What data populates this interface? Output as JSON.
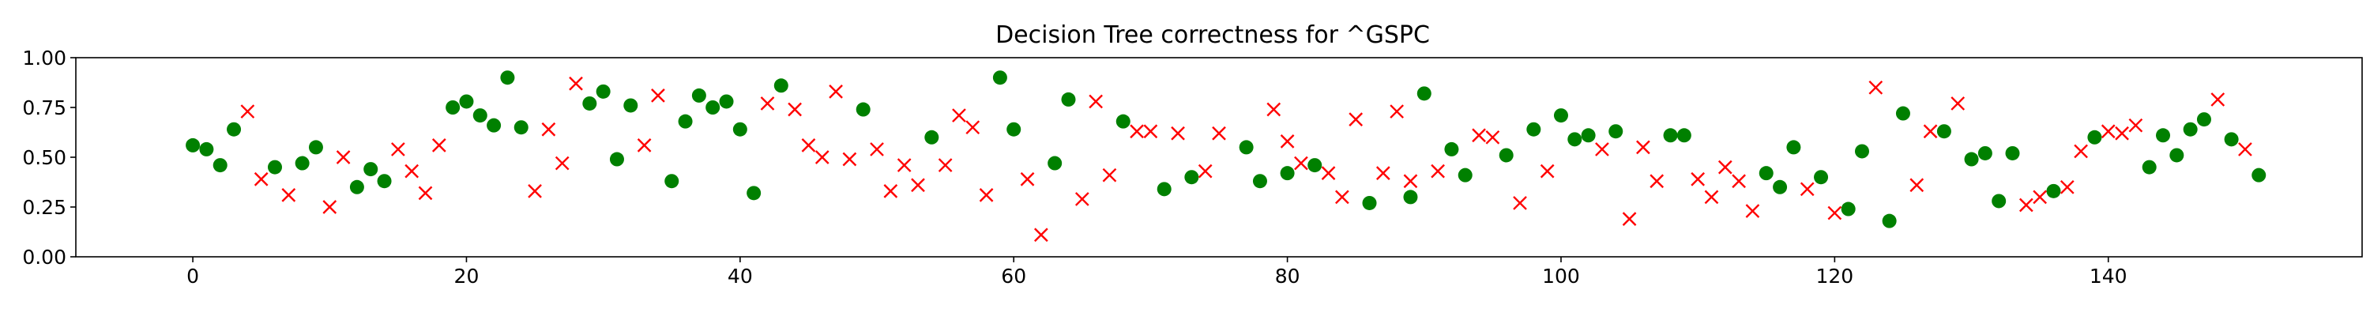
{
  "chart_data": {
    "type": "scatter",
    "title": "Decision Tree correctness for ^GSPC",
    "xlabel": "",
    "ylabel": "",
    "xlim": [
      -8.55,
      158.55
    ],
    "ylim": [
      0.0,
      1.0
    ],
    "xticks": [
      0,
      20,
      40,
      60,
      80,
      100,
      120,
      140
    ],
    "yticks": [
      0.0,
      0.25,
      0.5,
      0.75,
      1.0
    ],
    "xtick_labels": [
      "0",
      "20",
      "40",
      "60",
      "80",
      "100",
      "120",
      "140"
    ],
    "ytick_labels": [
      "0.00",
      "0.25",
      "0.50",
      "0.75",
      "1.00"
    ],
    "grid": false,
    "legend": "none",
    "series": [
      {
        "marker": "circle",
        "color": "#008000",
        "points": [
          [
            0,
            0.56
          ],
          [
            1,
            0.54
          ],
          [
            2,
            0.46
          ],
          [
            3,
            0.64
          ],
          [
            6,
            0.45
          ],
          [
            8,
            0.47
          ],
          [
            9,
            0.55
          ],
          [
            12,
            0.35
          ],
          [
            13,
            0.44
          ],
          [
            14,
            0.38
          ],
          [
            19,
            0.75
          ],
          [
            20,
            0.78
          ],
          [
            21,
            0.71
          ],
          [
            22,
            0.66
          ],
          [
            23,
            0.9
          ],
          [
            24,
            0.65
          ],
          [
            29,
            0.77
          ],
          [
            30,
            0.83
          ],
          [
            31,
            0.49
          ],
          [
            32,
            0.76
          ],
          [
            35,
            0.38
          ],
          [
            36,
            0.68
          ],
          [
            37,
            0.81
          ],
          [
            38,
            0.75
          ],
          [
            39,
            0.78
          ],
          [
            40,
            0.64
          ],
          [
            41,
            0.32
          ],
          [
            43,
            0.86
          ],
          [
            49,
            0.74
          ],
          [
            54,
            0.6
          ],
          [
            59,
            0.9
          ],
          [
            60,
            0.64
          ],
          [
            63,
            0.47
          ],
          [
            64,
            0.79
          ],
          [
            68,
            0.68
          ],
          [
            71,
            0.34
          ],
          [
            73,
            0.4
          ],
          [
            77,
            0.55
          ],
          [
            78,
            0.38
          ],
          [
            80,
            0.42
          ],
          [
            82,
            0.46
          ],
          [
            86,
            0.27
          ],
          [
            89,
            0.3
          ],
          [
            90,
            0.82
          ],
          [
            92,
            0.54
          ],
          [
            93,
            0.41
          ],
          [
            96,
            0.51
          ],
          [
            98,
            0.64
          ],
          [
            100,
            0.71
          ],
          [
            101,
            0.59
          ],
          [
            102,
            0.61
          ],
          [
            104,
            0.63
          ],
          [
            108,
            0.61
          ],
          [
            109,
            0.61
          ],
          [
            115,
            0.42
          ],
          [
            116,
            0.35
          ],
          [
            117,
            0.55
          ],
          [
            119,
            0.4
          ],
          [
            121,
            0.24
          ],
          [
            122,
            0.53
          ],
          [
            124,
            0.18
          ],
          [
            125,
            0.72
          ],
          [
            128,
            0.63
          ],
          [
            130,
            0.49
          ],
          [
            131,
            0.52
          ],
          [
            132,
            0.28
          ],
          [
            133,
            0.52
          ],
          [
            136,
            0.33
          ],
          [
            139,
            0.6
          ],
          [
            143,
            0.45
          ],
          [
            144,
            0.61
          ],
          [
            145,
            0.51
          ],
          [
            146,
            0.64
          ],
          [
            147,
            0.69
          ],
          [
            149,
            0.59
          ],
          [
            151,
            0.41
          ]
        ]
      },
      {
        "marker": "x",
        "color": "#ff0000",
        "points": [
          [
            4,
            0.73
          ],
          [
            5,
            0.39
          ],
          [
            7,
            0.31
          ],
          [
            10,
            0.25
          ],
          [
            11,
            0.5
          ],
          [
            15,
            0.54
          ],
          [
            16,
            0.43
          ],
          [
            17,
            0.32
          ],
          [
            18,
            0.56
          ],
          [
            25,
            0.33
          ],
          [
            26,
            0.64
          ],
          [
            27,
            0.47
          ],
          [
            28,
            0.87
          ],
          [
            33,
            0.56
          ],
          [
            34,
            0.81
          ],
          [
            42,
            0.77
          ],
          [
            44,
            0.74
          ],
          [
            45,
            0.56
          ],
          [
            46,
            0.5
          ],
          [
            47,
            0.83
          ],
          [
            48,
            0.49
          ],
          [
            50,
            0.54
          ],
          [
            51,
            0.33
          ],
          [
            52,
            0.46
          ],
          [
            53,
            0.36
          ],
          [
            55,
            0.46
          ],
          [
            56,
            0.71
          ],
          [
            57,
            0.65
          ],
          [
            58,
            0.31
          ],
          [
            61,
            0.39
          ],
          [
            62,
            0.11
          ],
          [
            65,
            0.29
          ],
          [
            66,
            0.78
          ],
          [
            67,
            0.41
          ],
          [
            69,
            0.63
          ],
          [
            70,
            0.63
          ],
          [
            72,
            0.62
          ],
          [
            74,
            0.43
          ],
          [
            75,
            0.62
          ],
          [
            79,
            0.74
          ],
          [
            80,
            0.58
          ],
          [
            81,
            0.47
          ],
          [
            83,
            0.42
          ],
          [
            84,
            0.3
          ],
          [
            85,
            0.69
          ],
          [
            87,
            0.42
          ],
          [
            88,
            0.73
          ],
          [
            89,
            0.38
          ],
          [
            91,
            0.43
          ],
          [
            94,
            0.61
          ],
          [
            95,
            0.6
          ],
          [
            97,
            0.27
          ],
          [
            99,
            0.43
          ],
          [
            103,
            0.54
          ],
          [
            105,
            0.19
          ],
          [
            106,
            0.55
          ],
          [
            107,
            0.38
          ],
          [
            110,
            0.39
          ],
          [
            111,
            0.3
          ],
          [
            112,
            0.45
          ],
          [
            113,
            0.38
          ],
          [
            114,
            0.23
          ],
          [
            118,
            0.34
          ],
          [
            120,
            0.22
          ],
          [
            123,
            0.85
          ],
          [
            126,
            0.36
          ],
          [
            127,
            0.63
          ],
          [
            129,
            0.77
          ],
          [
            134,
            0.26
          ],
          [
            135,
            0.3
          ],
          [
            137,
            0.35
          ],
          [
            138,
            0.53
          ],
          [
            140,
            0.63
          ],
          [
            141,
            0.62
          ],
          [
            142,
            0.66
          ],
          [
            148,
            0.79
          ],
          [
            150,
            0.54
          ]
        ]
      }
    ]
  }
}
